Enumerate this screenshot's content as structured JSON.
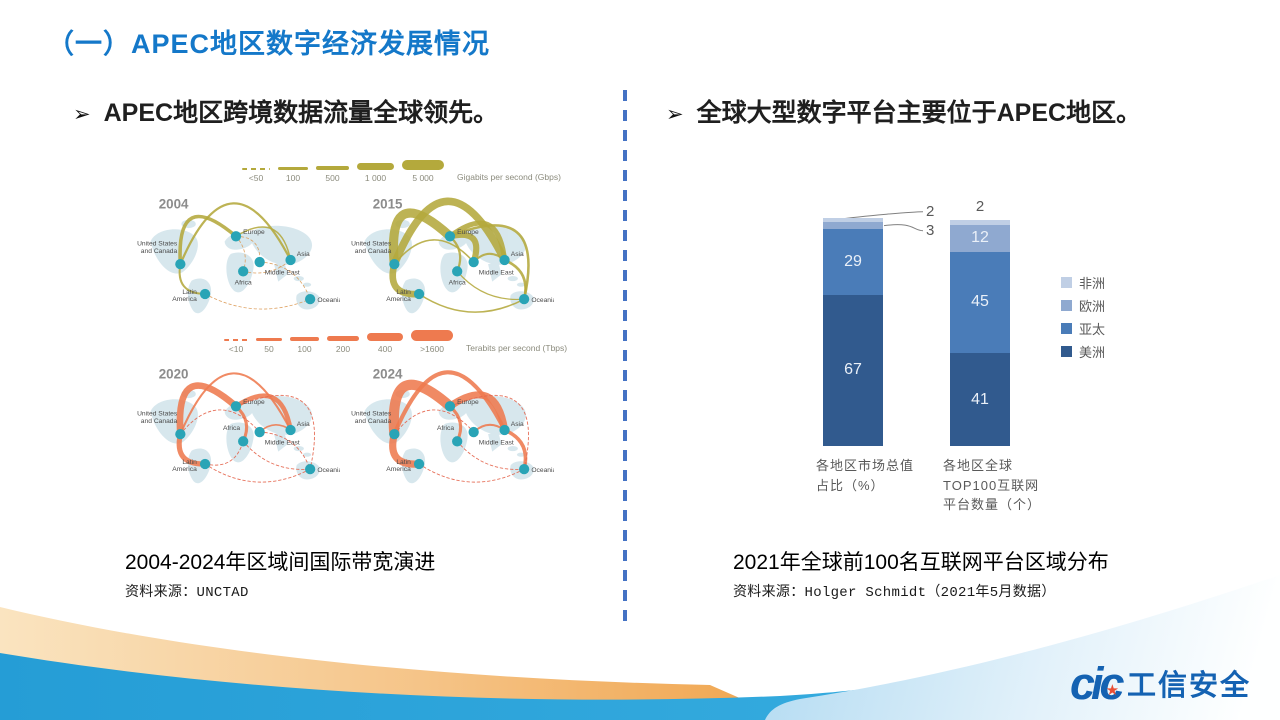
{
  "title": "（一）APEC地区数字经济发展情况",
  "bullets": {
    "glyph": "➢",
    "left": "APEC地区跨境数据流量全球领先。",
    "right": "全球大型数字平台主要位于APEC地区。"
  },
  "left_figure": {
    "caption": "2004-2024年区域间国际带宽演进",
    "source": "资料来源：UNCTAD",
    "legend_top": {
      "labels": [
        "<50",
        "100",
        "500",
        "1 000",
        "5 000"
      ],
      "unit": "Gigabits per second (Gbps)"
    },
    "legend_bottom": {
      "labels": [
        "<10",
        "50",
        "100",
        "200",
        "400",
        ">1600"
      ],
      "unit": "Terabits per second (Tbps)"
    },
    "regions": {
      "us": [
        "United States",
        "and Canada"
      ],
      "europe": [
        "Europe"
      ],
      "asia": [
        "Asia"
      ],
      "mideast": [
        "Middle East"
      ],
      "africa": [
        "Africa"
      ],
      "latam": [
        "Latin",
        "America"
      ],
      "oceania": [
        "Oceania"
      ]
    },
    "panels": [
      {
        "year": "2004",
        "color": "olive",
        "africa_label_up": false,
        "arcs": [
          {
            "f": "us",
            "t": "asia",
            "w": 2.2,
            "k": 114
          },
          {
            "f": "us",
            "t": "europe",
            "w": 3.5,
            "k": 70
          },
          {
            "f": "europe",
            "t": "asia",
            "w": 1.4,
            "k": 41
          },
          {
            "f": "us",
            "t": "latam",
            "w": 2,
            "k": -22
          },
          {
            "f": "europe",
            "t": "mideast",
            "w": 0.8,
            "k": 18,
            "d": 1
          },
          {
            "f": "europe",
            "t": "africa",
            "w": 0.8,
            "k": 10,
            "d": 1
          },
          {
            "f": "africa",
            "t": "asia",
            "w": 0.8,
            "k": -12,
            "d": 1
          },
          {
            "f": "mideast",
            "t": "oceania",
            "w": 0.8,
            "k": 20,
            "d": 1
          },
          {
            "f": "latam",
            "t": "oceania",
            "w": 0.8,
            "k": -24,
            "d": 1
          }
        ]
      },
      {
        "year": "2015",
        "color": "olive",
        "africa_label_up": false,
        "arcs": [
          {
            "f": "us",
            "t": "asia",
            "w": 7.5,
            "k": 118
          },
          {
            "f": "us",
            "t": "europe",
            "w": 9,
            "k": 78
          },
          {
            "f": "europe",
            "t": "asia",
            "w": 5,
            "k": 50
          },
          {
            "f": "europe",
            "t": "mideast",
            "w": 6,
            "k": 30
          },
          {
            "f": "us",
            "t": "latam",
            "w": 6.5,
            "k": -26
          },
          {
            "f": "europe",
            "t": "africa",
            "w": 2.2,
            "k": 12
          },
          {
            "f": "mideast",
            "t": "asia",
            "w": 2,
            "k": 14
          },
          {
            "f": "europe",
            "t": "oceania",
            "w": 2.5,
            "k": 90
          },
          {
            "f": "asia",
            "t": "oceania",
            "w": 2.5,
            "k": 18
          },
          {
            "f": "latam",
            "t": "oceania",
            "w": 1.5,
            "k": -30
          },
          {
            "f": "africa",
            "t": "oceania",
            "w": 1.2,
            "k": -18
          },
          {
            "f": "us",
            "t": "mideast",
            "w": 1.5,
            "k": 45
          }
        ]
      },
      {
        "year": "2020",
        "color": "orange",
        "africa_label_up": true,
        "arcs": [
          {
            "f": "us",
            "t": "asia",
            "w": 2,
            "k": 114
          },
          {
            "f": "us",
            "t": "europe",
            "w": 6.5,
            "k": 72
          },
          {
            "f": "europe",
            "t": "asia",
            "w": 4.5,
            "k": 44
          },
          {
            "f": "us",
            "t": "latam",
            "w": 5,
            "k": -24
          },
          {
            "f": "europe",
            "t": "africa",
            "w": 3,
            "k": 13
          },
          {
            "f": "mideast",
            "t": "asia",
            "w": 1.5,
            "k": 12
          },
          {
            "f": "us",
            "t": "mideast",
            "w": 0.9,
            "k": 45,
            "d": 1
          },
          {
            "f": "europe",
            "t": "oceania",
            "w": 0.9,
            "k": 90,
            "d": 1
          },
          {
            "f": "latam",
            "t": "oceania",
            "w": 0.9,
            "k": -30,
            "d": 1
          },
          {
            "f": "africa",
            "t": "oceania",
            "w": 0.9,
            "k": -18,
            "d": 1
          },
          {
            "f": "latam",
            "t": "africa",
            "w": 0.9,
            "k": -20,
            "d": 1
          },
          {
            "f": "mideast",
            "t": "oceania",
            "w": 0.9,
            "k": 20,
            "d": 1
          }
        ]
      },
      {
        "year": "2024",
        "color": "orange",
        "africa_label_up": true,
        "arcs": [
          {
            "f": "us",
            "t": "asia",
            "w": 4,
            "k": 116
          },
          {
            "f": "us",
            "t": "europe",
            "w": 10,
            "k": 74
          },
          {
            "f": "europe",
            "t": "asia",
            "w": 7,
            "k": 46
          },
          {
            "f": "us",
            "t": "latam",
            "w": 7,
            "k": -26
          },
          {
            "f": "europe",
            "t": "africa",
            "w": 3,
            "k": 13
          },
          {
            "f": "asia",
            "t": "oceania",
            "w": 3.5,
            "k": 18
          },
          {
            "f": "mideast",
            "t": "asia",
            "w": 2,
            "k": 12
          },
          {
            "f": "us",
            "t": "mideast",
            "w": 0.9,
            "k": 45,
            "d": 1
          },
          {
            "f": "latam",
            "t": "oceania",
            "w": 0.9,
            "k": -30,
            "d": 1
          },
          {
            "f": "africa",
            "t": "oceania",
            "w": 0.9,
            "k": -18,
            "d": 1
          },
          {
            "f": "europe",
            "t": "oceania",
            "w": 0.9,
            "k": 90,
            "d": 1
          }
        ]
      }
    ]
  },
  "chart_data": {
    "type": "bar",
    "stacked": true,
    "categories": [
      "各地区市场总值占比（%）",
      "各地区全球TOP100互联网平台数量（个）"
    ],
    "series": [
      {
        "name": "美洲",
        "color": "#315A8E",
        "values": [
          67,
          41
        ]
      },
      {
        "name": "亚太",
        "color": "#4A7CB8",
        "values": [
          29,
          45
        ]
      },
      {
        "name": "欧洲",
        "color": "#8FA9D0",
        "values": [
          3,
          12
        ]
      },
      {
        "name": "非洲",
        "color": "#C0CFE5",
        "values": [
          2,
          2
        ]
      }
    ],
    "legend_display_order": [
      "非洲",
      "欧洲",
      "亚太",
      "美洲"
    ],
    "legend_position": "right",
    "ylim": [
      0,
      100
    ],
    "gridlines": false,
    "title": ""
  },
  "right_figure": {
    "caption": "2021年全球前100名互联网平台区域分布",
    "source": "资料来源：Holger Schmidt（2021年5月数据）"
  },
  "logo": {
    "brand": "cic",
    "name": "工信安全",
    "star_icon": "★"
  },
  "colors": {
    "title_blue": "#1478C9",
    "divider_blue": "#4472C4",
    "olive": "#B4A93C",
    "olive_dash": "#DB9A55",
    "orange": "#EE7A4F",
    "orange_dash": "#E4654C",
    "node_teal": "#29A4B6",
    "land": "#D3E5EC",
    "wave_blue": "#2BA5DC",
    "wave_orange": "#F1A74E",
    "logo_blue": "#1462B2",
    "logo_star_red": "#E94F35"
  }
}
